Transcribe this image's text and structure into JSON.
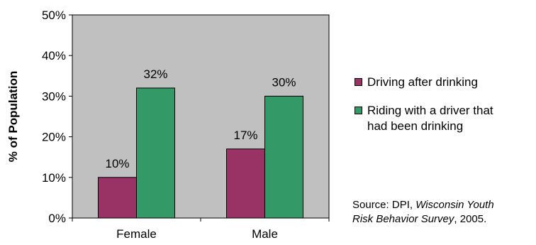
{
  "chart_data": {
    "type": "bar",
    "categories": [
      "Female",
      "Male"
    ],
    "series": [
      {
        "name": "Driving after drinking",
        "values": [
          10,
          17
        ],
        "labels": [
          "10%",
          "17%"
        ],
        "color": "#993366"
      },
      {
        "name": "Riding with a driver that had been drinking",
        "values": [
          32,
          30
        ],
        "labels": [
          "32%",
          "30%"
        ],
        "color": "#339966"
      }
    ],
    "ylabel": "% of Population",
    "ylim": [
      0,
      50
    ],
    "yticks": [
      0,
      10,
      20,
      30,
      40,
      50
    ],
    "ytick_labels": [
      "0%",
      "10%",
      "20%",
      "30%",
      "40%",
      "50%"
    ],
    "plot_background": "#C0C0C0",
    "grid": false,
    "legend_position": "right"
  },
  "legend": {
    "item1": "Driving after drinking",
    "item2_line1": "Riding with a driver that",
    "item2_line2": "had been drinking"
  },
  "source": {
    "prefix": "Source:  DPI, ",
    "title_line1": "Wisconsin Youth",
    "title_line2": "Risk Behavior Survey",
    "suffix": ", 2005."
  }
}
